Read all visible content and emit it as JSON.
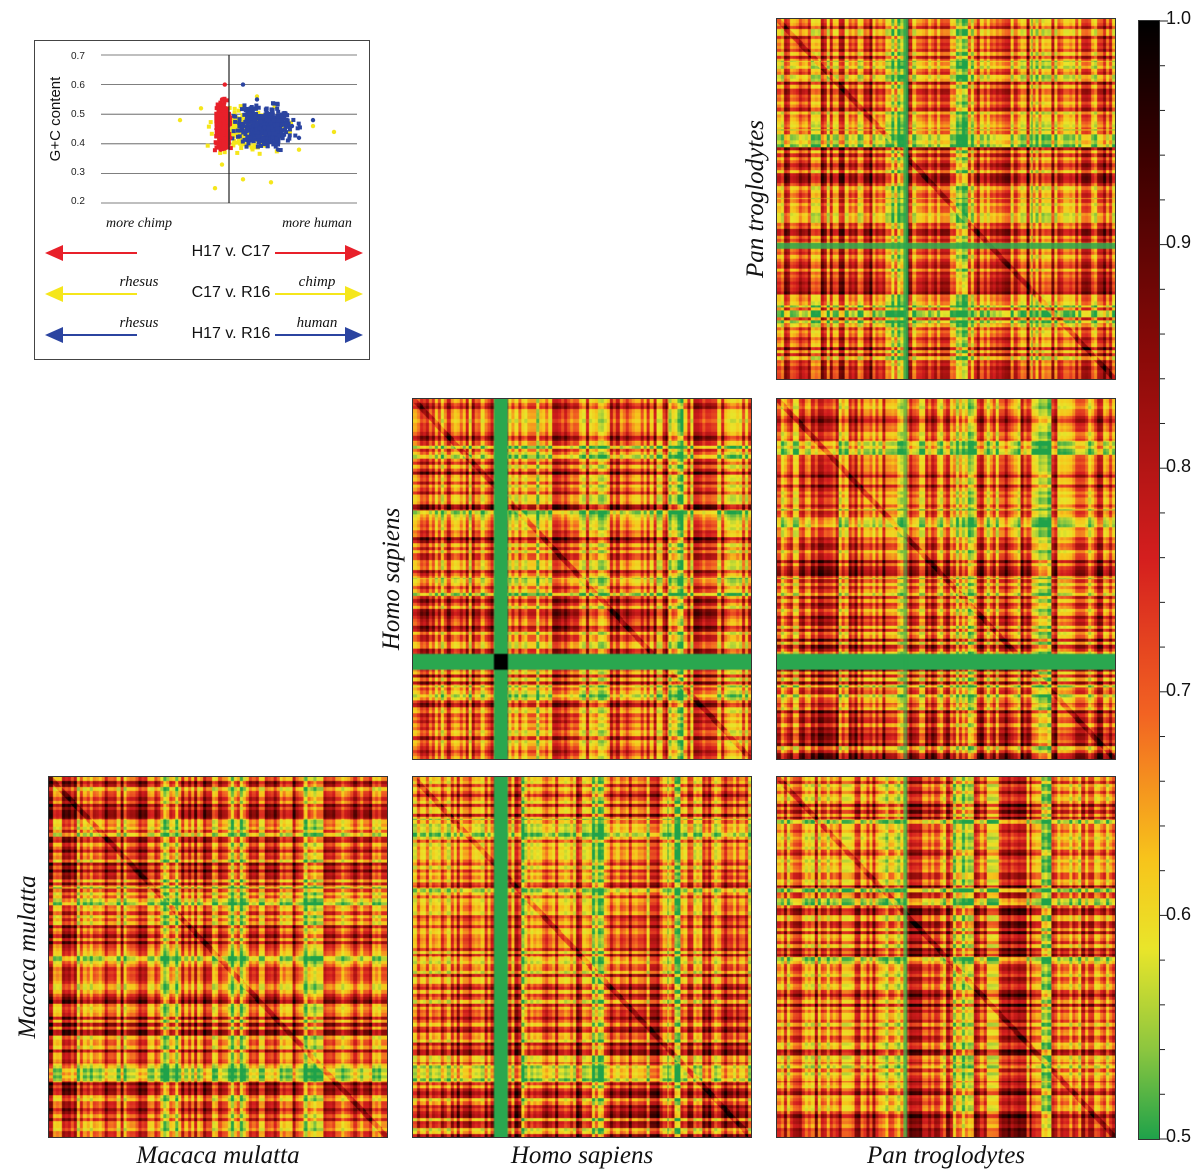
{
  "chart_data": [
    {
      "type": "heatmap",
      "panel": "pan-vs-pan",
      "ylabel": "Pan troglodytes",
      "xlabel": ""
    },
    {
      "type": "heatmap",
      "panel": "homo-vs-homo",
      "ylabel": "Homo sapiens",
      "xlabel": ""
    },
    {
      "type": "heatmap",
      "panel": "homo-vs-pan",
      "ylabel": "",
      "xlabel": ""
    },
    {
      "type": "heatmap",
      "panel": "macaca-vs-macaca",
      "ylabel": "Macaca mulatta",
      "xlabel": "Macaca mulatta"
    },
    {
      "type": "heatmap",
      "panel": "macaca-vs-homo",
      "ylabel": "",
      "xlabel": "Homo sapiens"
    },
    {
      "type": "heatmap",
      "panel": "macaca-vs-pan",
      "ylabel": "",
      "xlabel": "Pan troglodytes"
    },
    {
      "type": "scatter",
      "panel": "gc-content-inset",
      "ylabel": "G+C content",
      "ylim": [
        0.2,
        0.7
      ],
      "yticks": [
        "0.7",
        "0.6",
        "0.5",
        "0.4",
        "0.3",
        "0.2"
      ],
      "grid": true,
      "series": [
        {
          "name": "H17 v. C17",
          "color": "#e8202a",
          "left_label": "more chimp",
          "right_label": "more human",
          "x": [
            -0.9,
            -0.7,
            -0.5,
            -0.3,
            -0.1,
            0.1,
            -0.6,
            -0.4,
            -0.8,
            -0.2
          ],
          "y": [
            0.45,
            0.5,
            0.55,
            0.6,
            0.45,
            0.42,
            0.38,
            0.48,
            0.4,
            0.52
          ]
        },
        {
          "name": "C17 v. R16",
          "color": "#f5e61b",
          "left_label": "rhesus",
          "right_label": "chimp",
          "x": [
            -3.5,
            -2.0,
            -1.0,
            1.0,
            3.0,
            6.0,
            7.5,
            -0.5,
            5.0,
            2.0
          ],
          "y": [
            0.48,
            0.52,
            0.25,
            0.28,
            0.27,
            0.46,
            0.44,
            0.33,
            0.38,
            0.56
          ]
        },
        {
          "name": "H17 v. R16",
          "color": "#2b44a0",
          "left_label": "rhesus",
          "right_label": "human",
          "x": [
            1.0,
            2.0,
            3.0,
            4.0,
            5.0,
            6.0,
            2.5,
            3.5,
            1.5,
            4.5
          ],
          "y": [
            0.6,
            0.55,
            0.5,
            0.45,
            0.42,
            0.48,
            0.4,
            0.38,
            0.52,
            0.46
          ]
        }
      ]
    }
  ],
  "colorbar": {
    "ticks": [
      "1.0",
      "0.9",
      "0.8",
      "0.7",
      "0.6",
      "0.5"
    ],
    "colors": [
      "#000000",
      "#3a0000",
      "#8a0a08",
      "#d41e1e",
      "#f26322",
      "#f7c41b",
      "#e9e52a",
      "#8cc63f",
      "#1fa24a"
    ]
  }
}
